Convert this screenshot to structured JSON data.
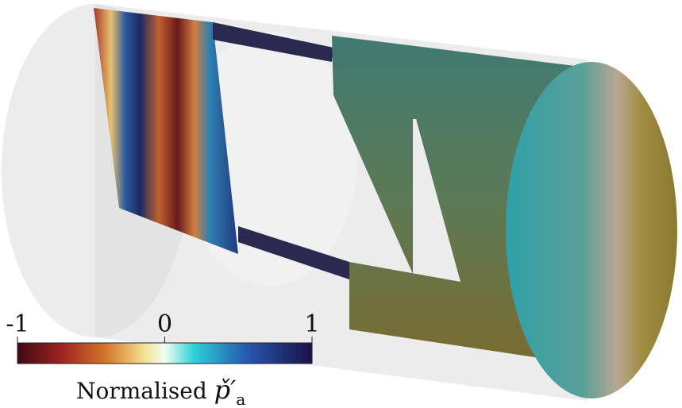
{
  "colorbar": {
    "range": [
      -1,
      1
    ],
    "ticks": [
      -1,
      0,
      1
    ],
    "label": "Normalised",
    "symbol": "p̌′",
    "subscript": "a"
  }
}
